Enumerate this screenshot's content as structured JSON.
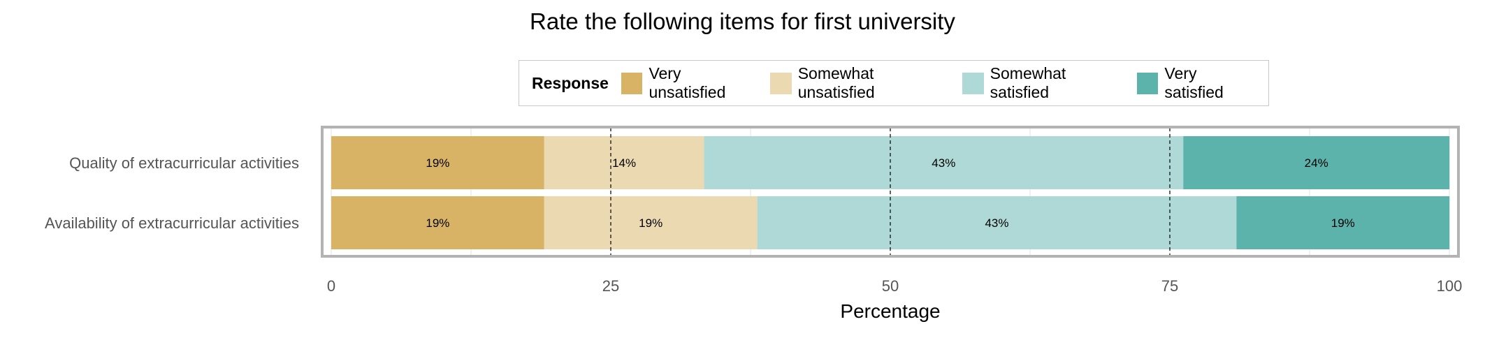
{
  "chart_data": {
    "type": "bar",
    "orientation": "horizontal",
    "stacked": true,
    "title": "Rate the following items for first university",
    "xlabel": "Percentage",
    "ylabel": "",
    "xlim": [
      0,
      100
    ],
    "x_ticks": [
      "0",
      "25",
      "50",
      "75",
      "100"
    ],
    "grid": true,
    "legend": {
      "title": "Response",
      "placement": "top"
    },
    "categories": [
      "Quality of extracurricular activities",
      "Availability of extracurricular activities"
    ],
    "series": [
      {
        "name": "Very unsatisfied",
        "color": "#D9B365",
        "values": [
          19.05,
          19.05
        ],
        "labels": [
          "19%",
          "19%"
        ]
      },
      {
        "name": "Somewhat unsatisfied",
        "color": "#EBD9B2",
        "values": [
          14.29,
          19.05
        ],
        "labels": [
          "14%",
          "19%"
        ]
      },
      {
        "name": "Somewhat satisfied",
        "color": "#AED9D6",
        "values": [
          42.86,
          42.86
        ],
        "labels": [
          "43%",
          "43%"
        ]
      },
      {
        "name": "Very satisfied",
        "color": "#5CB3AC",
        "values": [
          23.81,
          19.05
        ],
        "labels": [
          "24%",
          "19%"
        ]
      }
    ],
    "reference_lines": [
      25,
      50,
      75
    ]
  }
}
